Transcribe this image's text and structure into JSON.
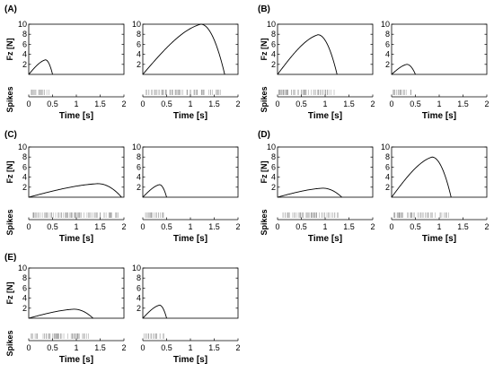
{
  "chart_data": [
    {
      "panel": "(A)",
      "type": "line",
      "ylabel": "Fz [N]",
      "spikes_label": "Spikes",
      "xlabel": "Time [s]",
      "xlim": [
        0,
        2
      ],
      "ylim": [
        0,
        10
      ],
      "yticks": [
        2,
        4,
        6,
        8,
        10
      ],
      "xticks": [
        0,
        0.5,
        1,
        1.5,
        2
      ],
      "subplots": [
        {
          "peak_time": 0.35,
          "peak_force": 2.9,
          "end_time": 0.5,
          "spike_start": 0.02,
          "spike_end": 0.48
        },
        {
          "peak_time": 1.22,
          "peak_force": 10.0,
          "end_time": 1.72,
          "spike_start": 0.05,
          "spike_end": 1.65
        }
      ]
    },
    {
      "panel": "(B)",
      "type": "line",
      "ylabel": "Fz [N]",
      "spikes_label": "Spikes",
      "xlabel": "Time [s]",
      "xlim": [
        0,
        2
      ],
      "ylim": [
        0,
        10
      ],
      "yticks": [
        2,
        4,
        6,
        8,
        10
      ],
      "xticks": [
        0,
        0.5,
        1,
        1.5,
        2
      ],
      "subplots": [
        {
          "peak_time": 0.85,
          "peak_force": 7.9,
          "end_time": 1.25,
          "spike_start": 0.02,
          "spike_end": 1.2
        },
        {
          "peak_time": 0.32,
          "peak_force": 2.0,
          "end_time": 0.5,
          "spike_start": 0.02,
          "spike_end": 0.45
        }
      ]
    },
    {
      "panel": "(C)",
      "type": "line",
      "ylabel": "Fz [N]",
      "spikes_label": "Spikes",
      "xlabel": "Time [s]",
      "xlim": [
        0,
        2
      ],
      "ylim": [
        0,
        10
      ],
      "yticks": [
        2,
        4,
        6,
        8,
        10
      ],
      "xticks": [
        0,
        0.5,
        1,
        1.5,
        2
      ],
      "subplots": [
        {
          "peak_time": 1.45,
          "peak_force": 2.7,
          "end_time": 1.95,
          "spike_start": 0.05,
          "spike_end": 1.9
        },
        {
          "peak_time": 0.35,
          "peak_force": 2.5,
          "end_time": 0.5,
          "spike_start": 0.02,
          "spike_end": 0.45
        }
      ]
    },
    {
      "panel": "(D)",
      "type": "line",
      "ylabel": "Fz [N]",
      "spikes_label": "Spikes",
      "xlabel": "Time [s]",
      "xlim": [
        0,
        2
      ],
      "ylim": [
        0,
        10
      ],
      "yticks": [
        2,
        4,
        6,
        8,
        10
      ],
      "xticks": [
        0,
        0.5,
        1,
        1.5,
        2
      ],
      "subplots": [
        {
          "peak_time": 0.95,
          "peak_force": 1.8,
          "end_time": 1.35,
          "spike_start": 0.05,
          "spike_end": 1.3
        },
        {
          "peak_time": 0.85,
          "peak_force": 8.0,
          "end_time": 1.25,
          "spike_start": 0.05,
          "spike_end": 1.2
        }
      ]
    },
    {
      "panel": "(E)",
      "type": "line",
      "ylabel": "Fz [N]",
      "spikes_label": "Spikes",
      "xlabel": "Time [s]",
      "xlim": [
        0,
        2
      ],
      "ylim": [
        0,
        10
      ],
      "yticks": [
        2,
        4,
        6,
        8,
        10
      ],
      "xticks": [
        0,
        0.5,
        1,
        1.5,
        2
      ],
      "subplots": [
        {
          "peak_time": 0.95,
          "peak_force": 1.8,
          "end_time": 1.35,
          "spike_start": 0.05,
          "spike_end": 1.3
        },
        {
          "peak_time": 0.35,
          "peak_force": 2.6,
          "end_time": 0.5,
          "spike_start": 0.02,
          "spike_end": 0.45
        }
      ]
    }
  ]
}
